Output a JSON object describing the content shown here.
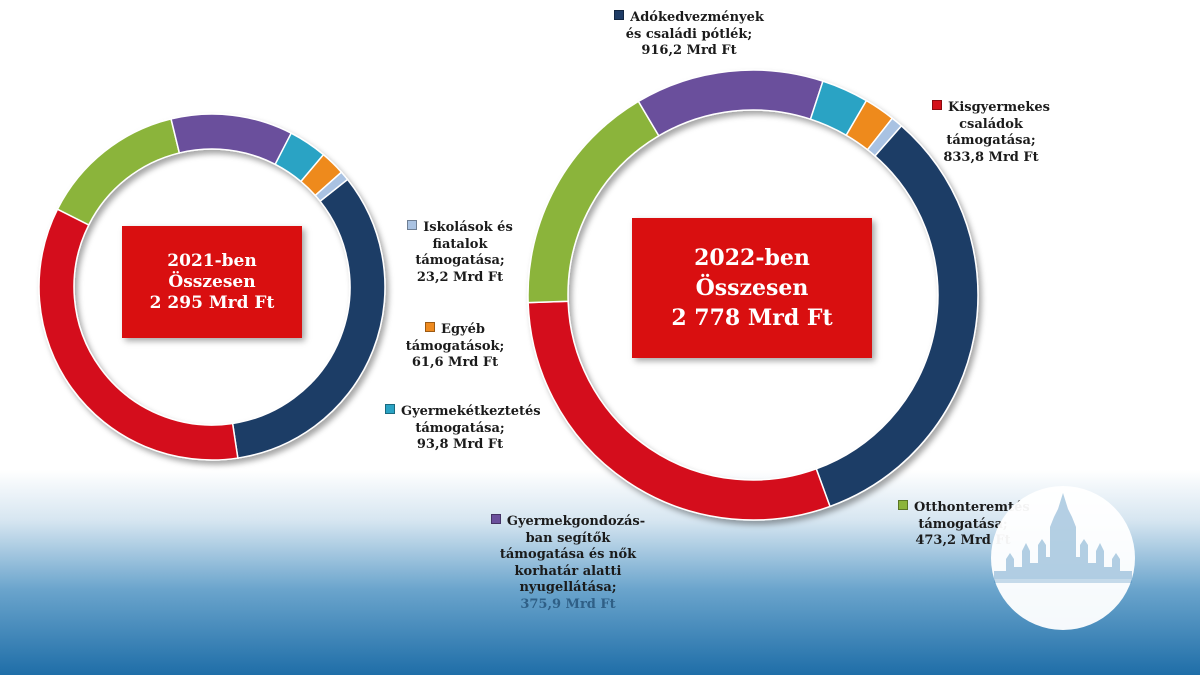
{
  "colors": {
    "adokedvezmenyek": "#1f3c66",
    "kisgyermekes": "#d4111a",
    "otthonteremtes": "#8bb43a",
    "gyermekgondozas": "#6b4f9c",
    "gyermekeketeztetes": "#2aa3c4",
    "egyeb": "#ee8a1f",
    "iskolasok": "#a9c2e2"
  },
  "boxes": {
    "y2021": {
      "line1": "2021-ben",
      "line2": "Összesen",
      "line3": "2 295 Mrd Ft"
    },
    "y2022": {
      "line1": "2022-ben",
      "line2": "Összesen",
      "line3": "2 778 Mrd Ft"
    }
  },
  "labels": {
    "adokedvezmenyek": {
      "l1": "Adókedvezmények",
      "l2": "és családi pótlék;",
      "l3": "916,2 Mrd Ft"
    },
    "kisgyermekes": {
      "l1": "Kisgyermekes",
      "l2": "családok",
      "l3": "támogatása;",
      "l4": "833,8 Mrd Ft"
    },
    "iskolasok": {
      "l1": "Iskolások és",
      "l2": "fiatalok",
      "l3": "támogatása;",
      "l4": "23,2 Mrd Ft"
    },
    "egyeb": {
      "l1": "Egyéb",
      "l2": "támogatások;",
      "l3": "61,6 Mrd Ft"
    },
    "gyermekeketeztetes": {
      "l1": "Gyermekétkeztetés",
      "l2": "támogatása;",
      "l3": "93,8 Mrd Ft"
    },
    "gyermekgondozas": {
      "l1": "Gyermekgondozás-",
      "l2": "ban segítők",
      "l3": "támogatása és nők",
      "l4": "korhatár alatti",
      "l5": "nyugellátása;",
      "l6": "375,9 Mrd Ft"
    },
    "otthonteremtes": {
      "l1": "Otthonteremtés",
      "l2": "támogatása;",
      "l3": "473,2 Mrd Ft"
    }
  },
  "chart_data": [
    {
      "type": "donut",
      "title": "2021-ben Összesen 2 295 Mrd Ft",
      "unit": "Mrd Ft",
      "total": 2295,
      "categories": [
        "Adókedvezmények és családi pótlék",
        "Kisgyermekes családok támogatása",
        "Otthonteremtés támogatása",
        "Gyermekgondozásban segítők támogatása és nők korhatár alatti nyugellátása",
        "Gyermekétkeztetés támogatása",
        "Egyéb támogatások",
        "Iskolások és fiatalok támogatása"
      ],
      "values": [
        764,
        799,
        316,
        261,
        82,
        53,
        20
      ],
      "values_note": "estimated from slice angles; segment values not printed for 2021"
    },
    {
      "type": "donut",
      "title": "2022-ben Összesen 2 778 Mrd Ft",
      "unit": "Mrd Ft",
      "total": 2778,
      "categories": [
        "Adókedvezmények és családi pótlék",
        "Kisgyermekes családok támogatása",
        "Otthonteremtés támogatása",
        "Gyermekgondozásban segítők támogatása és nők korhatár alatti nyugellátása",
        "Gyermekétkeztetés támogatása",
        "Egyéb támogatások",
        "Iskolások és fiatalok támogatása"
      ],
      "values": [
        916.2,
        833.8,
        473.2,
        375.9,
        93.8,
        61.6,
        23.2
      ]
    }
  ]
}
